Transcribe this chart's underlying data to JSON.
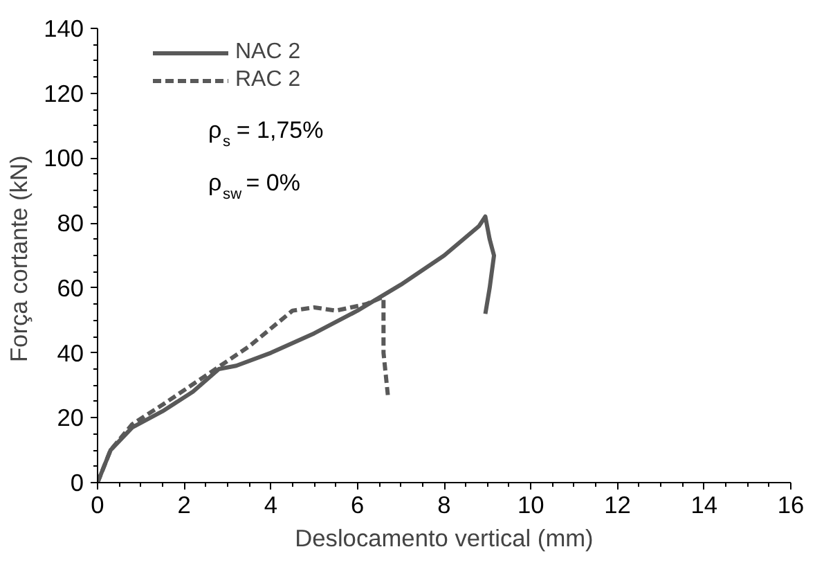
{
  "chart_data": {
    "type": "line",
    "xlabel": "Deslocamento vertical (mm)",
    "ylabel": "Força cortante  (kN)",
    "xlim": [
      0,
      16
    ],
    "xticks": [
      0,
      2,
      4,
      6,
      8,
      10,
      12,
      14,
      16
    ],
    "ylim": [
      0,
      140
    ],
    "yticks": [
      0,
      20,
      40,
      60,
      80,
      100,
      120,
      140
    ],
    "grid": false,
    "legend": "top left",
    "series": [
      {
        "name": "NAC 2",
        "color": "#595959",
        "line_style": "solid",
        "x": [
          0,
          0.3,
          0.8,
          1.5,
          2.2,
          2.8,
          3.2,
          4,
          5,
          6,
          7,
          8,
          8.8,
          8.95,
          9.05,
          9.15,
          9.05,
          8.95
        ],
        "values": [
          0,
          10,
          17,
          22,
          28,
          35,
          36,
          40,
          46,
          53,
          61,
          70,
          79,
          82,
          75,
          70,
          60,
          52
        ]
      },
      {
        "name": "RAC 2",
        "color": "#595959",
        "line_style": "dashed",
        "x": [
          0,
          0.3,
          0.8,
          1.5,
          2.5,
          3.5,
          4.5,
          5,
          5.5,
          6.2,
          6.55,
          6.6,
          6.6,
          6.7
        ],
        "values": [
          0,
          10,
          18,
          24,
          33,
          42,
          53,
          54,
          53,
          55,
          57,
          57,
          40,
          27
        ]
      }
    ],
    "annotations": [
      "ρ$_{s}$ = 1,75%",
      "ρ$_{sw}$ = 0%"
    ]
  }
}
